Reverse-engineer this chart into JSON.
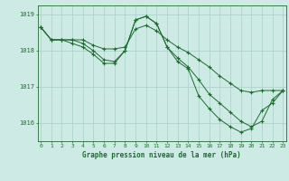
{
  "background_color": "#ceeae4",
  "grid_color": "#a8cec8",
  "line_color": "#1e6b30",
  "title": "Graphe pression niveau de la mer (hPa)",
  "xlim": [
    -0.3,
    23.3
  ],
  "ylim": [
    1015.5,
    1019.25
  ],
  "yticks": [
    1016,
    1017,
    1018,
    1019
  ],
  "xticks": [
    0,
    1,
    2,
    3,
    4,
    5,
    6,
    7,
    8,
    9,
    10,
    11,
    12,
    13,
    14,
    15,
    16,
    17,
    18,
    19,
    20,
    21,
    22,
    23
  ],
  "series": [
    [
      1018.65,
      1018.3,
      1018.3,
      1018.3,
      1018.3,
      1018.15,
      1018.05,
      1018.05,
      1018.1,
      1018.6,
      1018.7,
      1018.55,
      1018.3,
      1018.1,
      1017.95,
      1017.75,
      1017.55,
      1017.3,
      1017.1,
      1016.9,
      1016.85,
      1016.9,
      1016.9,
      1016.9
    ],
    [
      1018.65,
      1018.3,
      1018.3,
      1018.3,
      1018.2,
      1018.0,
      1017.75,
      1017.7,
      1018.0,
      1018.85,
      1018.95,
      1018.75,
      1018.1,
      1017.8,
      1017.55,
      1017.2,
      1016.8,
      1016.55,
      1016.3,
      1016.05,
      1015.9,
      1016.05,
      1016.65,
      1016.9
    ],
    [
      1018.65,
      1018.3,
      1018.3,
      1018.2,
      1018.1,
      1017.9,
      1017.65,
      1017.65,
      1018.0,
      1018.85,
      1018.95,
      1018.75,
      1018.1,
      1017.7,
      1017.5,
      1016.75,
      1016.4,
      1016.1,
      1015.9,
      1015.75,
      1015.85,
      1016.35,
      1016.55,
      1016.9
    ]
  ],
  "x": [
    0,
    1,
    2,
    3,
    4,
    5,
    6,
    7,
    8,
    9,
    10,
    11,
    12,
    13,
    14,
    15,
    16,
    17,
    18,
    19,
    20,
    21,
    22,
    23
  ]
}
